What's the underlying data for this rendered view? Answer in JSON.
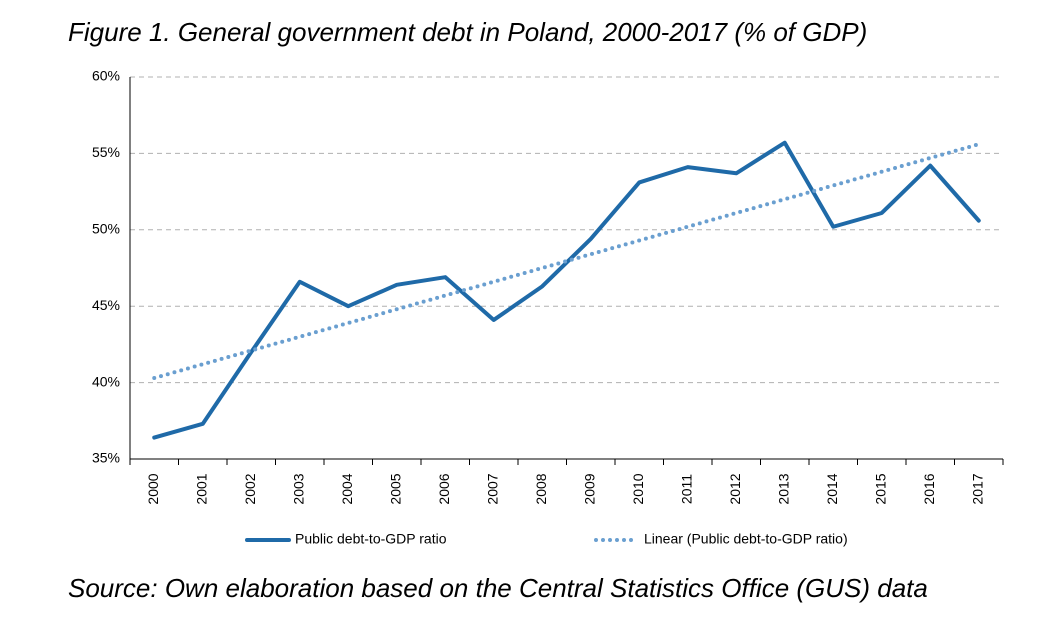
{
  "chart_data": {
    "type": "line",
    "title": "Figure 1. General government debt in Poland, 2000-2017 (% of GDP)",
    "source": "Source: Own elaboration based on the Central Statistics Office (GUS) data",
    "categories": [
      "2000",
      "2001",
      "2002",
      "2003",
      "2004",
      "2005",
      "2006",
      "2007",
      "2008",
      "2009",
      "2010",
      "2011",
      "2012",
      "2013",
      "2014",
      "2015",
      "2016",
      "2017"
    ],
    "series": [
      {
        "name": "Public debt-to-GDP ratio",
        "color": "#1f6aa8",
        "style": "solid",
        "values": [
          36.4,
          37.3,
          42.0,
          46.6,
          45.0,
          46.4,
          46.9,
          44.1,
          46.3,
          49.4,
          53.1,
          54.1,
          53.7,
          55.7,
          50.2,
          51.1,
          54.2,
          50.6
        ]
      },
      {
        "name": "Linear (Public debt-to-GDP ratio)",
        "color": "#6a9fd0",
        "style": "dotted",
        "values": [
          40.3,
          41.2,
          42.1,
          43.0,
          43.9,
          44.8,
          45.7,
          46.6,
          47.5,
          48.4,
          49.3,
          50.2,
          51.1,
          52.0,
          52.9,
          53.8,
          54.7,
          55.6
        ]
      }
    ],
    "ylim": [
      35,
      60
    ],
    "yticks": [
      {
        "value": 35,
        "label": "35%"
      },
      {
        "value": 40,
        "label": "40%"
      },
      {
        "value": 45,
        "label": "45%"
      },
      {
        "value": 50,
        "label": "50%"
      },
      {
        "value": 55,
        "label": "55%"
      },
      {
        "value": 60,
        "label": "60%"
      }
    ],
    "grid": true,
    "legend": "bottom"
  }
}
